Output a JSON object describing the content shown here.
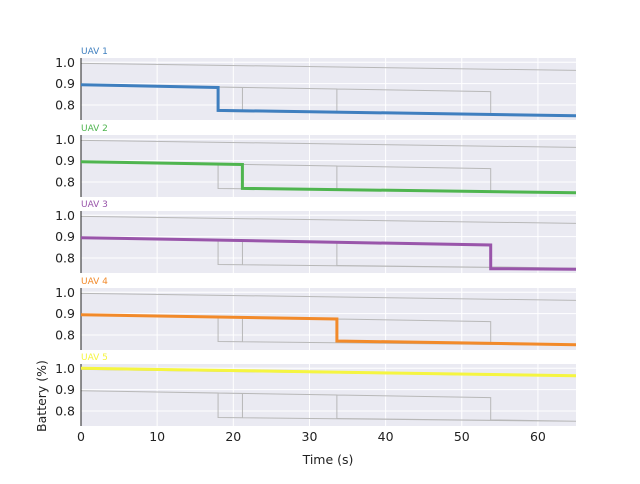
{
  "chart_data": {
    "type": "line",
    "xlabel": "Time (s)",
    "ylabel": "Battery (%)",
    "xlim": [
      0,
      65
    ],
    "ylim": [
      0.73,
      1.02
    ],
    "x_ticks": [
      "0",
      "10",
      "20",
      "30",
      "40",
      "50",
      "60"
    ],
    "y_ticks": [
      "0.8",
      "0.9",
      "1.0"
    ],
    "grid": true,
    "panels": [
      {
        "title": "UAV 1",
        "color": "#3f7fbf",
        "x": [
          0,
          18,
          18,
          65
        ],
        "y": [
          0.895,
          0.882,
          0.775,
          0.75
        ]
      },
      {
        "title": "UAV 2",
        "color": "#4fb54f",
        "x": [
          0,
          21.2,
          21.2,
          65
        ],
        "y": [
          0.895,
          0.882,
          0.77,
          0.75
        ]
      },
      {
        "title": "UAV 3",
        "color": "#9955aa",
        "x": [
          0,
          53.8,
          53.8,
          65
        ],
        "y": [
          0.895,
          0.861,
          0.75,
          0.748
        ]
      },
      {
        "title": "UAV 4",
        "color": "#f28a2a",
        "x": [
          0,
          33.6,
          33.6,
          65
        ],
        "y": [
          0.895,
          0.875,
          0.772,
          0.755
        ]
      },
      {
        "title": "UAV 5",
        "color": "#f5f540",
        "x": [
          0,
          65
        ],
        "y": [
          1.0,
          0.965
        ]
      }
    ]
  }
}
